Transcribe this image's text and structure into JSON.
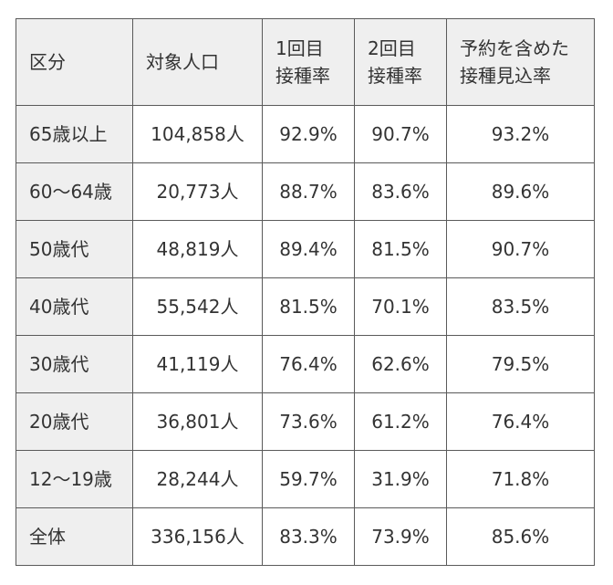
{
  "table": {
    "headers": [
      [
        "区分"
      ],
      [
        "対象人口"
      ],
      [
        "1回目",
        "接種率"
      ],
      [
        "2回目",
        "接種率"
      ],
      [
        "予約を含めた",
        "接種見込率"
      ]
    ],
    "rows": [
      [
        "65歳以上",
        "104,858人",
        "92.9%",
        "90.7%",
        "93.2%"
      ],
      [
        "60～64歳",
        "20,773人",
        "88.7%",
        "83.6%",
        "89.6%"
      ],
      [
        "50歳代",
        "48,819人",
        "89.4%",
        "81.5%",
        "90.7%"
      ],
      [
        "40歳代",
        "55,542人",
        "81.5%",
        "70.1%",
        "83.5%"
      ],
      [
        "30歳代",
        "41,119人",
        "76.4%",
        "62.6%",
        "79.5%"
      ],
      [
        "20歳代",
        "36,801人",
        "73.6%",
        "61.2%",
        "76.4%"
      ],
      [
        "12～19歳",
        "28,244人",
        "59.7%",
        "31.9%",
        "71.8%"
      ],
      [
        "全体",
        "336,156人",
        "83.3%",
        "73.9%",
        "85.6%"
      ]
    ]
  }
}
